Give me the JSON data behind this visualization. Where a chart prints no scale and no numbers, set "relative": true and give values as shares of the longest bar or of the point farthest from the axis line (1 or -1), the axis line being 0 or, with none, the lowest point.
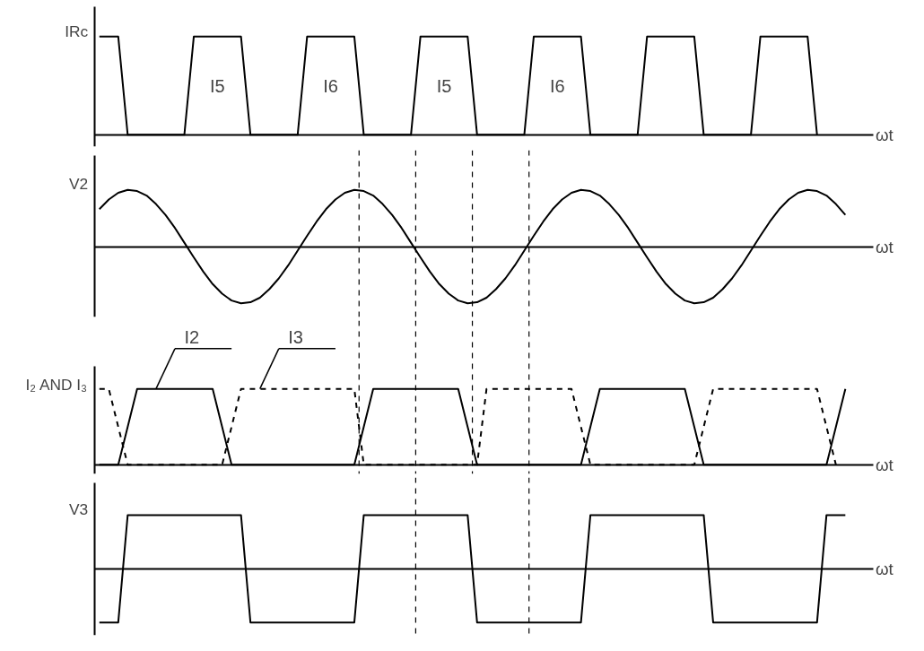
{
  "chart_data": [
    {
      "type": "line",
      "relative": true,
      "ylabel": "IRc",
      "xlabel": "ωt",
      "categories": [
        null,
        null,
        null,
        null,
        null,
        null,
        null,
        null,
        null,
        null,
        null,
        null,
        null,
        null,
        null,
        null,
        null,
        null,
        null,
        null,
        null,
        null,
        null,
        null,
        null,
        null,
        null,
        null,
        null,
        null,
        null,
        null,
        null,
        null,
        null,
        null,
        null,
        null,
        null,
        null,
        null,
        null,
        null,
        null,
        null,
        null,
        null,
        null,
        null,
        null,
        null,
        null,
        null,
        null,
        null,
        null,
        null,
        null,
        null,
        null,
        null,
        null,
        null,
        null,
        null,
        null,
        null,
        null,
        null,
        null,
        null,
        null,
        null,
        null,
        null,
        null,
        null,
        null,
        null,
        null
      ],
      "series": [
        {
          "color": "#000000",
          "line_style": "solid",
          "values": [
            1,
            1,
            1,
            0,
            0,
            0,
            0,
            0,
            0,
            0,
            1,
            1,
            1,
            1,
            1,
            1,
            0,
            0,
            0,
            0,
            0,
            0,
            1,
            1,
            1,
            1,
            1,
            1,
            0,
            0,
            0,
            0,
            0,
            0,
            1,
            1,
            1,
            1,
            1,
            1,
            0,
            0,
            0,
            0,
            0,
            0,
            1,
            1,
            1,
            1,
            1,
            1,
            0,
            0,
            0,
            0,
            0,
            0,
            1,
            1,
            1,
            1,
            1,
            1,
            0,
            0,
            0,
            0,
            0,
            0,
            1,
            1,
            1,
            1,
            1,
            1,
            0,
            null,
            null,
            null
          ]
        }
      ],
      "annotations": [
        "I5",
        "I6",
        "I5",
        "I6"
      ]
    },
    {
      "type": "line",
      "relative": true,
      "ylabel": "V2",
      "xlabel": "ωt",
      "categories": [
        null,
        null,
        null,
        null,
        null,
        null,
        null,
        null,
        null,
        null,
        null,
        null,
        null,
        null,
        null,
        null,
        null,
        null,
        null,
        null,
        null,
        null,
        null,
        null,
        null,
        null,
        null,
        null,
        null,
        null,
        null,
        null,
        null,
        null,
        null,
        null,
        null,
        null,
        null,
        null,
        null,
        null,
        null,
        null,
        null,
        null,
        null,
        null,
        null,
        null,
        null,
        null,
        null,
        null,
        null,
        null,
        null,
        null,
        null,
        null,
        null,
        null,
        null,
        null,
        null,
        null,
        null,
        null,
        null,
        null,
        null,
        null,
        null,
        null,
        null,
        null,
        null,
        null,
        null,
        null
      ],
      "series": [
        {
          "color": "#000000",
          "line_style": "solid",
          "values": [
            0.66,
            0.83,
            0.95,
            1,
            0.98,
            0.9,
            0.75,
            0.56,
            0.33,
            0.07,
            -0.19,
            -0.44,
            -0.66,
            -0.83,
            -0.95,
            -1,
            -0.98,
            -0.9,
            -0.75,
            -0.56,
            -0.33,
            -0.07,
            0.19,
            0.44,
            0.66,
            0.83,
            0.95,
            1,
            0.98,
            0.9,
            0.75,
            0.56,
            0.33,
            0.07,
            -0.19,
            -0.44,
            -0.66,
            -0.83,
            -0.95,
            -1,
            -0.98,
            -0.9,
            -0.75,
            -0.56,
            -0.33,
            -0.07,
            0.19,
            0.44,
            0.66,
            0.83,
            0.95,
            1,
            0.98,
            0.9,
            0.75,
            0.56,
            0.33,
            0.07,
            -0.19,
            -0.44,
            -0.66,
            -0.83,
            -0.95,
            -1,
            -0.98,
            -0.9,
            -0.75,
            -0.56,
            -0.33,
            -0.07,
            0.19,
            0.44,
            0.66,
            0.83,
            0.95,
            1,
            0.98,
            0.9,
            0.75,
            0.56
          ]
        }
      ]
    },
    {
      "type": "line",
      "relative": true,
      "ylabel": "I₂ AND I₃",
      "xlabel": "ωt",
      "categories": [
        null,
        null,
        null,
        null,
        null,
        null,
        null,
        null,
        null,
        null,
        null,
        null,
        null,
        null,
        null,
        null,
        null,
        null,
        null,
        null,
        null,
        null,
        null,
        null,
        null,
        null,
        null,
        null,
        null,
        null,
        null,
        null,
        null,
        null,
        null,
        null,
        null,
        null,
        null,
        null,
        null,
        null,
        null,
        null,
        null,
        null,
        null,
        null,
        null,
        null,
        null,
        null,
        null,
        null,
        null,
        null,
        null,
        null,
        null,
        null,
        null,
        null,
        null,
        null,
        null,
        null,
        null,
        null,
        null,
        null,
        null,
        null,
        null,
        null,
        null,
        null,
        null,
        null,
        null,
        null
      ],
      "series": [
        {
          "color": "#000000",
          "line_style": "solid",
          "values": [
            0,
            0,
            0,
            0.5,
            1,
            1,
            1,
            1,
            1,
            1,
            1,
            1,
            1,
            0.5,
            0,
            0,
            0,
            0,
            0,
            0,
            0,
            0,
            0,
            0,
            0,
            0,
            0,
            0,
            0.5,
            1,
            1,
            1,
            1,
            1,
            1,
            1,
            1,
            1,
            1,
            0.5,
            0,
            0,
            0,
            0,
            0,
            0,
            0,
            0,
            0,
            0,
            0,
            0,
            0.5,
            1,
            1,
            1,
            1,
            1,
            1,
            1,
            1,
            1,
            1,
            0.5,
            0,
            0,
            0,
            0,
            0,
            0,
            0,
            0,
            0,
            0,
            0,
            0,
            0,
            0,
            0.5,
            1
          ]
        },
        {
          "color": "#000000",
          "line_style": "dashed",
          "values": [
            1,
            1,
            0.5,
            0,
            0,
            0,
            0,
            0,
            0,
            0,
            0,
            0,
            0,
            0,
            0.5,
            1,
            1,
            1,
            1,
            1,
            1,
            1,
            1,
            1,
            1,
            1,
            1,
            1,
            0,
            0,
            0,
            0,
            0,
            0,
            0,
            0,
            0,
            0,
            0,
            0,
            0,
            1,
            1,
            1,
            1,
            1,
            1,
            1,
            1,
            1,
            1,
            0.5,
            0,
            0,
            0,
            0,
            0,
            0,
            0,
            0,
            0,
            0,
            0,
            0,
            0.5,
            1,
            1,
            1,
            1,
            1,
            1,
            1,
            1,
            1,
            1,
            1,
            1,
            0.5,
            0,
            null
          ]
        }
      ],
      "annotations": [
        "I2",
        "I3"
      ]
    },
    {
      "type": "line",
      "relative": true,
      "ylabel": "V3",
      "xlabel": "ωt",
      "categories": [
        null,
        null,
        null,
        null,
        null,
        null,
        null,
        null,
        null,
        null,
        null,
        null,
        null,
        null,
        null,
        null,
        null,
        null,
        null,
        null,
        null,
        null,
        null,
        null,
        null,
        null,
        null,
        null,
        null,
        null,
        null,
        null,
        null,
        null,
        null,
        null,
        null,
        null,
        null,
        null,
        null,
        null,
        null,
        null,
        null,
        null,
        null,
        null,
        null,
        null,
        null,
        null,
        null,
        null,
        null,
        null,
        null,
        null,
        null,
        null,
        null,
        null,
        null,
        null,
        null,
        null,
        null,
        null,
        null,
        null,
        null,
        null,
        null,
        null,
        null,
        null,
        null,
        null,
        null,
        null
      ],
      "series": [
        {
          "color": "#000000",
          "line_style": "solid",
          "values": [
            -1,
            -1,
            -1,
            1,
            1,
            1,
            1,
            1,
            1,
            1,
            1,
            1,
            1,
            1,
            1,
            1,
            -1,
            -1,
            -1,
            -1,
            -1,
            -1,
            -1,
            -1,
            -1,
            -1,
            -1,
            -1,
            1,
            1,
            1,
            1,
            1,
            1,
            1,
            1,
            1,
            1,
            1,
            1,
            -1,
            -1,
            -1,
            -1,
            -1,
            -1,
            -1,
            -1,
            -1,
            -1,
            -1,
            -1,
            1,
            1,
            1,
            1,
            1,
            1,
            1,
            1,
            1,
            1,
            1,
            1,
            1,
            -1,
            -1,
            -1,
            -1,
            -1,
            -1,
            -1,
            -1,
            -1,
            -1,
            -1,
            -1,
            1,
            1,
            1
          ]
        }
      ]
    }
  ]
}
